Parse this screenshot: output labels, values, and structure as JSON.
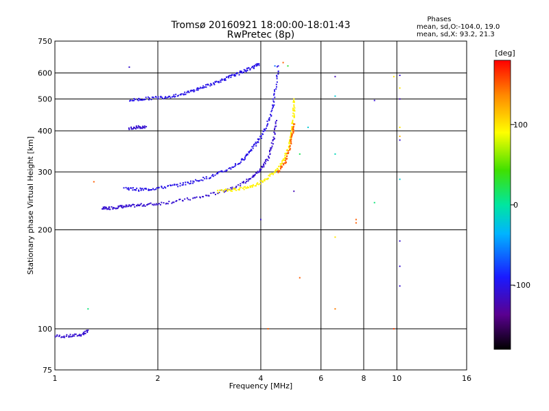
{
  "chart_data": {
    "type": "scatter",
    "title": "Tromsø 20160921 18:00:00-18:01:43",
    "subtitle": "RwPretec (8p)",
    "xlabel": "Frequency [MHz]",
    "ylabel": "Stationary phase Virtual Height [km]",
    "x_scale": "log",
    "y_scale": "log",
    "xlim": [
      1,
      16
    ],
    "ylim": [
      75,
      750
    ],
    "x_ticks": [
      1,
      2,
      4,
      6,
      8,
      10,
      16
    ],
    "x_tick_labels": [
      "1",
      "2",
      "4",
      "6",
      "8",
      "10",
      "16"
    ],
    "y_ticks": [
      75,
      100,
      200,
      300,
      400,
      500,
      600,
      750
    ],
    "y_tick_labels": [
      "75",
      "100",
      "200",
      "300",
      "400",
      "500",
      "600",
      "750"
    ],
    "grid": true,
    "stats": {
      "heading": "Phases",
      "line_o": "mean, sd,O:-104.0, 19.0",
      "line_x": "mean, sd,X:  93.2, 21.3"
    },
    "colorbar": {
      "label": "[deg]",
      "range": [
        -180,
        180
      ],
      "ticks": [
        100,
        0,
        -100
      ],
      "tick_labels": [
        "100",
        "0",
        "-100"
      ]
    },
    "traces": [
      {
        "x": [
          1.0,
          1.1,
          1.2,
          1.25
        ],
        "y": [
          95,
          95,
          96,
          99
        ],
        "phase": -110
      },
      {
        "x": [
          1.38,
          1.45,
          1.55,
          1.65,
          1.8,
          2.0,
          2.3,
          2.7,
          3.1,
          3.5,
          3.8,
          4.0,
          4.2,
          4.35,
          4.45
        ],
        "y": [
          232,
          233,
          235,
          236,
          238,
          240,
          245,
          252,
          262,
          275,
          290,
          305,
          330,
          370,
          430
        ],
        "phase": -110
      },
      {
        "x": [
          1.6,
          1.75,
          1.9,
          2.1,
          2.35,
          2.6,
          2.9,
          3.2,
          3.5,
          3.7,
          3.9,
          4.1,
          4.3,
          4.4,
          4.5
        ],
        "y": [
          268,
          265,
          266,
          270,
          275,
          282,
          292,
          305,
          322,
          345,
          368,
          400,
          450,
          520,
          630
        ],
        "phase": -100
      },
      {
        "x": [
          3.0,
          3.3,
          3.6,
          3.9,
          4.2,
          4.45,
          4.65,
          4.8,
          4.9,
          4.95,
          5.0,
          5.0
        ],
        "y": [
          262,
          265,
          268,
          275,
          288,
          305,
          325,
          350,
          380,
          410,
          450,
          500
        ],
        "phase": 95
      },
      {
        "x": [
          4.5,
          4.7,
          4.85,
          4.95,
          5.0
        ],
        "y": [
          300,
          320,
          350,
          390,
          420
        ],
        "phase": 150
      },
      {
        "x": [
          1.65,
          1.8,
          2.0,
          2.2,
          2.4,
          2.6,
          2.8,
          3.0,
          3.2,
          3.4,
          3.6,
          3.8,
          3.95
        ],
        "y": [
          495,
          500,
          505,
          510,
          520,
          535,
          550,
          565,
          580,
          595,
          610,
          625,
          640
        ],
        "phase": -100
      },
      {
        "x": [
          1.65,
          1.75,
          1.85
        ],
        "y": [
          408,
          410,
          412
        ],
        "phase": -110
      }
    ],
    "points": [
      {
        "x": 1.65,
        "y": 625,
        "phase": -110
      },
      {
        "x": 1.3,
        "y": 280,
        "phase": 150
      },
      {
        "x": 1.25,
        "y": 115,
        "phase": 10
      },
      {
        "x": 4.2,
        "y": 100,
        "phase": 150
      },
      {
        "x": 4.0,
        "y": 215,
        "phase": -110
      },
      {
        "x": 4.65,
        "y": 645,
        "phase": 150
      },
      {
        "x": 4.4,
        "y": 630,
        "phase": -60
      },
      {
        "x": 4.8,
        "y": 630,
        "phase": 30
      },
      {
        "x": 5.5,
        "y": 410,
        "phase": -20
      },
      {
        "x": 5.2,
        "y": 340,
        "phase": 20
      },
      {
        "x": 5.0,
        "y": 262,
        "phase": -120
      },
      {
        "x": 5.2,
        "y": 143,
        "phase": 150
      },
      {
        "x": 6.6,
        "y": 585,
        "phase": -120
      },
      {
        "x": 6.6,
        "y": 510,
        "phase": -20
      },
      {
        "x": 6.6,
        "y": 340,
        "phase": -10
      },
      {
        "x": 6.6,
        "y": 190,
        "phase": 100
      },
      {
        "x": 6.6,
        "y": 115,
        "phase": 140
      },
      {
        "x": 7.6,
        "y": 215,
        "phase": 150
      },
      {
        "x": 7.6,
        "y": 210,
        "phase": 150
      },
      {
        "x": 8.6,
        "y": 495,
        "phase": -110
      },
      {
        "x": 8.6,
        "y": 242,
        "phase": 10
      },
      {
        "x": 9.8,
        "y": 585,
        "phase": 100
      },
      {
        "x": 9.8,
        "y": 100,
        "phase": 160
      },
      {
        "x": 10.2,
        "y": 590,
        "phase": -110
      },
      {
        "x": 10.2,
        "y": 540,
        "phase": 100
      },
      {
        "x": 10.2,
        "y": 500,
        "phase": -120
      },
      {
        "x": 10.2,
        "y": 410,
        "phase": 100
      },
      {
        "x": 10.2,
        "y": 385,
        "phase": 120
      },
      {
        "x": 10.2,
        "y": 375,
        "phase": -110
      },
      {
        "x": 10.2,
        "y": 285,
        "phase": -20
      },
      {
        "x": 10.2,
        "y": 185,
        "phase": -110
      },
      {
        "x": 10.2,
        "y": 155,
        "phase": -110
      },
      {
        "x": 10.2,
        "y": 135,
        "phase": -110
      }
    ]
  }
}
